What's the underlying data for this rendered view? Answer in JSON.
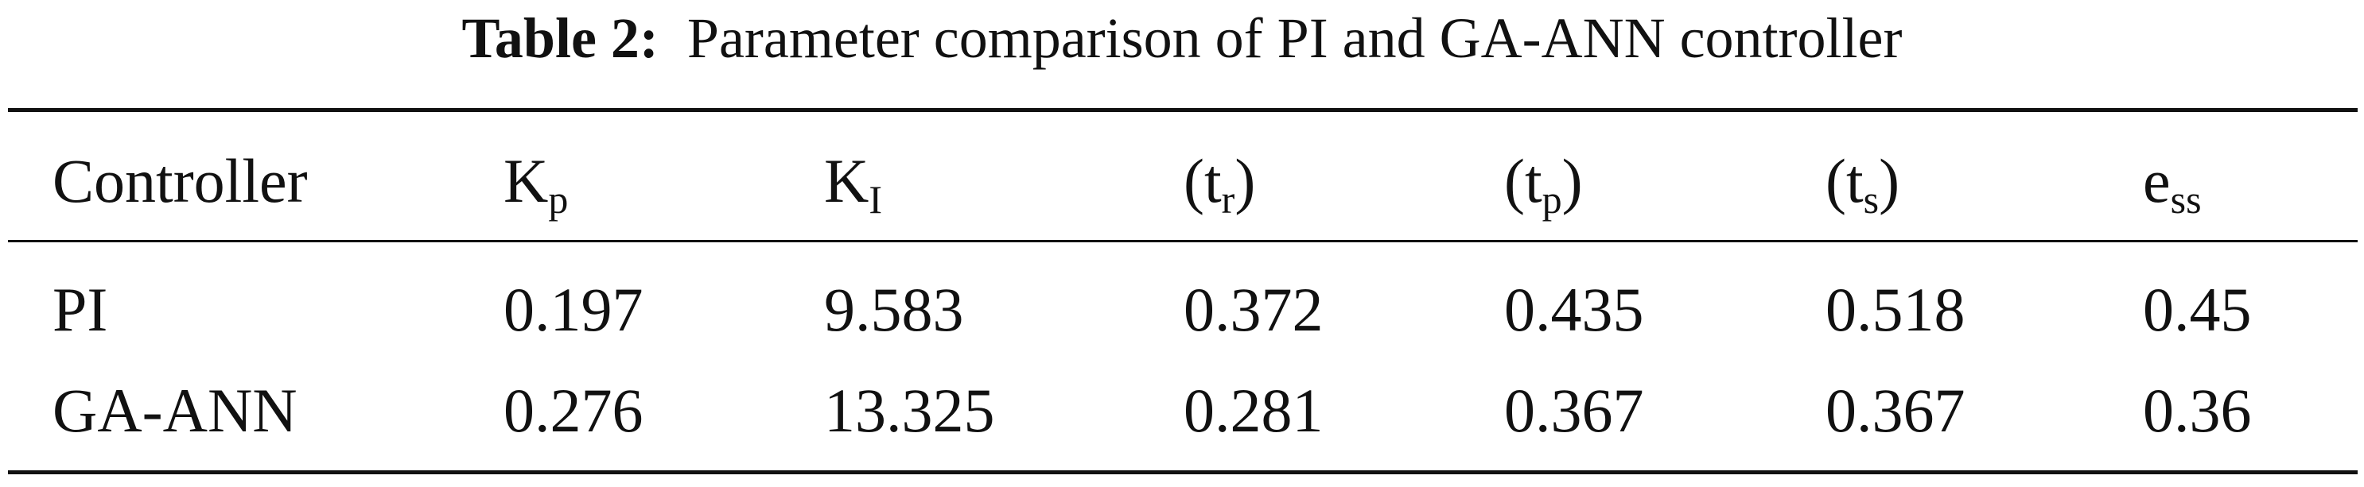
{
  "table": {
    "caption": {
      "label": "Table 2:",
      "text": "Parameter comparison of PI and GA-ANN controller"
    },
    "header": [
      {
        "base": "Controller"
      },
      {
        "base": "K",
        "sub": "p"
      },
      {
        "base": "K",
        "sub": "I"
      },
      {
        "base": "(t",
        "sub": "r",
        "tail": ")"
      },
      {
        "base": "(t",
        "sub": "p",
        "tail": ")"
      },
      {
        "base": "(t",
        "sub": "s",
        "tail": ")"
      },
      {
        "base": "e",
        "sub": "ss"
      }
    ],
    "rows": [
      [
        "PI",
        "0.197",
        "9.583",
        "0.372",
        "0.435",
        "0.518",
        "0.45"
      ],
      [
        "GA-ANN",
        "0.276",
        "13.325",
        "0.281",
        "0.367",
        "0.367",
        "0.36"
      ]
    ]
  }
}
